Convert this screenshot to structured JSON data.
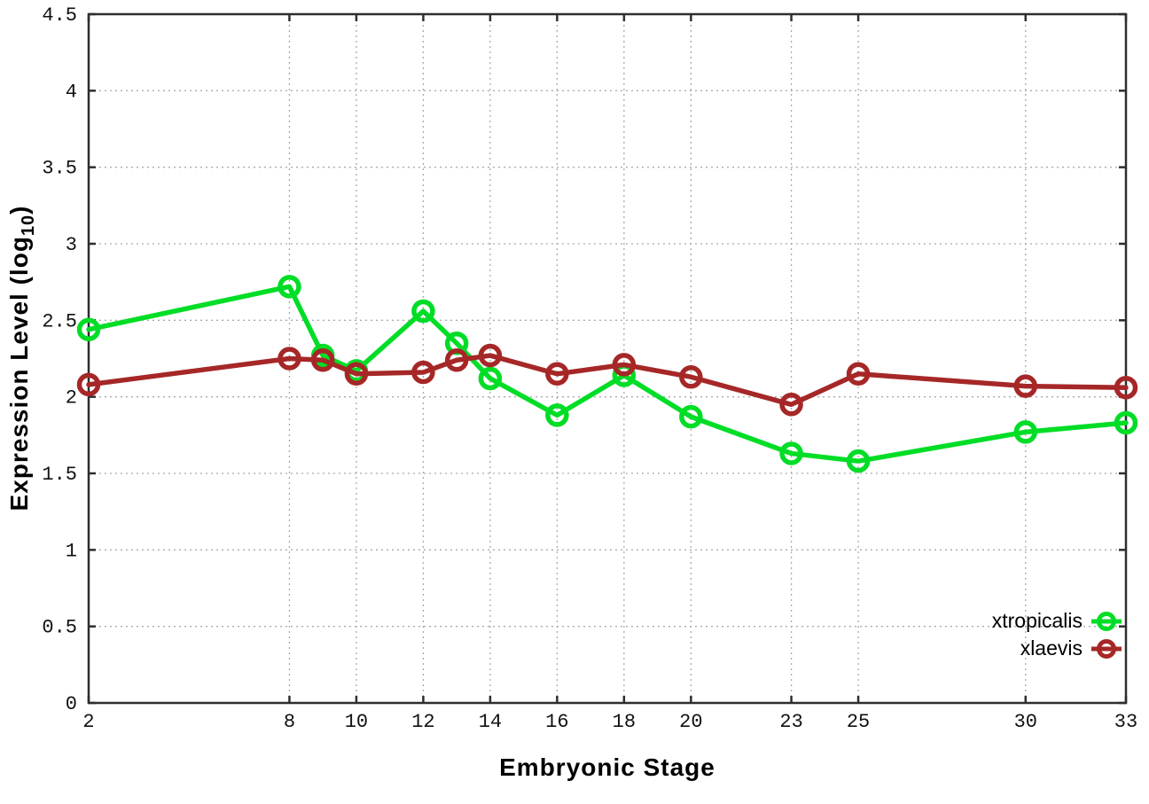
{
  "page": {
    "background": "#ffffff"
  },
  "chart_data": {
    "type": "line",
    "title": "",
    "xlabel": "Embryonic Stage",
    "ylabel": "Expression Level (log10)",
    "ylabel_parts": {
      "base": "Expression Level (log",
      "sub": "10",
      "close": ")"
    },
    "x_tick_values": [
      2,
      8,
      10,
      12,
      14,
      16,
      18,
      20,
      23,
      25,
      30,
      33
    ],
    "x_tick_labels": [
      "2",
      "8",
      "10",
      "12",
      "14",
      "16",
      "18",
      "20",
      "23",
      "25",
      "30",
      "33"
    ],
    "y_tick_values": [
      0,
      0.5,
      1,
      1.5,
      2,
      2.5,
      3,
      3.5,
      4,
      4.5
    ],
    "y_tick_labels": [
      "0",
      "0.5",
      "1",
      "1.5",
      "2",
      "2.5",
      "3",
      "3.5",
      "4",
      "4.5"
    ],
    "xlim": [
      2,
      33
    ],
    "ylim": [
      0,
      4.5
    ],
    "grid": true,
    "legend_position": "bottom-right",
    "x": [
      2,
      8,
      9,
      10,
      12,
      13,
      14,
      16,
      18,
      20,
      23,
      25,
      30,
      33
    ],
    "series": [
      {
        "name": "xtropicalis",
        "color": "#00dd26",
        "values": [
          2.44,
          2.72,
          2.27,
          2.17,
          2.56,
          2.35,
          2.12,
          1.88,
          2.14,
          1.87,
          1.63,
          1.58,
          1.77,
          1.83
        ]
      },
      {
        "name": "xlaevis",
        "color": "#a62727",
        "values": [
          2.08,
          2.25,
          2.24,
          2.15,
          2.16,
          2.24,
          2.27,
          2.15,
          2.21,
          2.13,
          1.95,
          2.15,
          2.07,
          2.06
        ]
      }
    ],
    "style": {
      "grid_color": "#aaaaaa",
      "border_color": "#2e2e2e",
      "tick_label_color": "#111111"
    }
  }
}
